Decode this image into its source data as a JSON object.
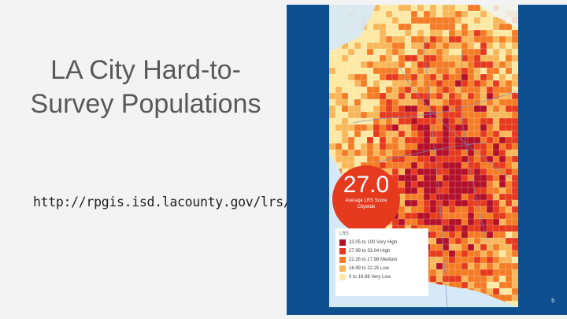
{
  "slide": {
    "title": "LA City Hard-to-Survey Populations",
    "url": "http://rpgis.isd.lacounty.gov/lrs/",
    "page_number": "5"
  },
  "map": {
    "average_score": "27.0",
    "average_label": "Average LRS Score Citywide",
    "legend_title": "LRS",
    "legend": [
      {
        "label": "33.05 to 100 Very High",
        "color": "#b3102a"
      },
      {
        "label": "27.99 to 33.04 High",
        "color": "#e63a1f"
      },
      {
        "label": "22.26 to 27.98 Medium",
        "color": "#f47c26"
      },
      {
        "label": "16.99 to 22.25 Low",
        "color": "#f8b75a"
      },
      {
        "label": "0 to 16.98 Very Low",
        "color": "#fde9a4"
      }
    ],
    "ocean_color": "#d6e9f7",
    "panel_color": "#0d4f8f"
  }
}
